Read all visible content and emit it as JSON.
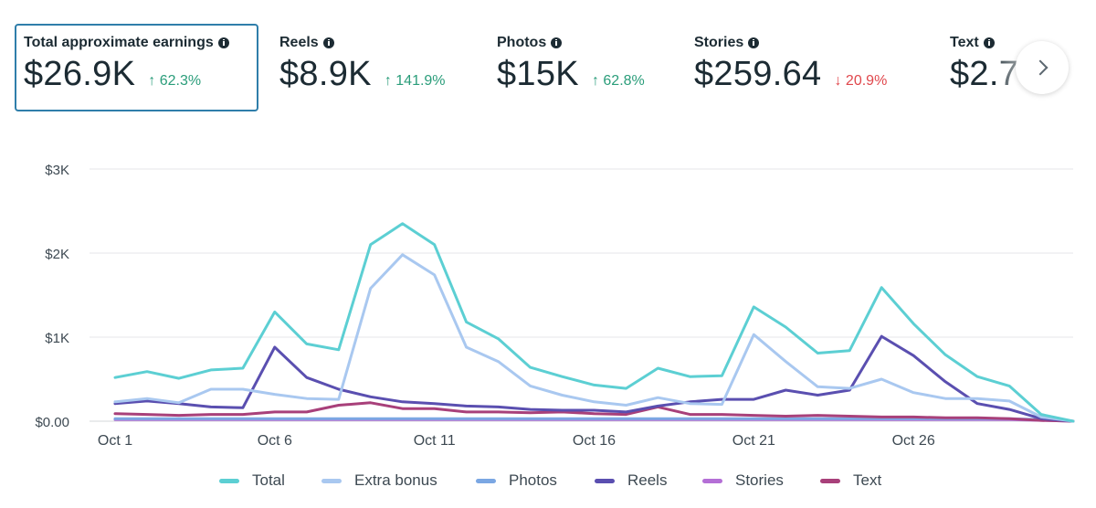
{
  "cards": [
    {
      "label": "Total approximate earnings",
      "value": "$26.9K",
      "change": "62.3%",
      "direction": "up",
      "arrow": "↑",
      "selected": true
    },
    {
      "label": "Reels",
      "value": "$8.9K",
      "change": "141.9%",
      "direction": "up",
      "arrow": "↑"
    },
    {
      "label": "Photos",
      "value": "$15K",
      "change": "62.8%",
      "direction": "up",
      "arrow": "↑"
    },
    {
      "label": "Stories",
      "value": "$259.64",
      "change": "20.9%",
      "direction": "down",
      "arrow": "↓"
    },
    {
      "label": "Text",
      "value": "$2.7",
      "change": "",
      "direction": "down",
      "arrow": "↓"
    }
  ],
  "icons": {
    "info": "info-icon",
    "next": "chevron-right-icon"
  },
  "chart_data": {
    "type": "line",
    "title": "",
    "xlabel": "",
    "ylabel": "",
    "ylim": [
      0,
      3000
    ],
    "grid": true,
    "legend_position": "bottom",
    "y_ticks": [
      0,
      1000,
      2000,
      3000
    ],
    "y_tick_labels": [
      "$0.00",
      "$1K",
      "$2K",
      "$3K"
    ],
    "x_tick_indices": [
      0,
      5,
      10,
      15,
      20,
      25
    ],
    "x_tick_labels": [
      "Oct 1",
      "Oct 6",
      "Oct 11",
      "Oct 16",
      "Oct 21",
      "Oct 26"
    ],
    "x": [
      1,
      2,
      3,
      4,
      5,
      6,
      7,
      8,
      9,
      10,
      11,
      12,
      13,
      14,
      15,
      16,
      17,
      18,
      19,
      20,
      21,
      22,
      23,
      24,
      25,
      26,
      27,
      28,
      29,
      30,
      31
    ],
    "series": [
      {
        "name": "Total",
        "color": "#5ccfd3",
        "values": [
          520,
          590,
          510,
          610,
          630,
          1300,
          920,
          850,
          2100,
          2350,
          2100,
          1180,
          980,
          640,
          530,
          430,
          390,
          630,
          530,
          540,
          1360,
          1120,
          810,
          840,
          1590,
          1160,
          790,
          530,
          420,
          80,
          0
        ]
      },
      {
        "name": "Extra bonus",
        "color": "#a9c8f0",
        "values": [
          230,
          270,
          220,
          380,
          380,
          320,
          270,
          260,
          1580,
          1980,
          1740,
          880,
          710,
          420,
          310,
          230,
          190,
          280,
          210,
          200,
          1030,
          710,
          410,
          390,
          500,
          340,
          270,
          270,
          240,
          50,
          0
        ]
      },
      {
        "name": "Photos",
        "color": "#7ba7e3",
        "values": [
          30,
          30,
          30,
          30,
          30,
          30,
          30,
          30,
          30,
          30,
          30,
          30,
          30,
          30,
          30,
          30,
          30,
          30,
          30,
          30,
          30,
          30,
          30,
          30,
          30,
          30,
          30,
          30,
          30,
          20,
          0
        ]
      },
      {
        "name": "Reels",
        "color": "#5a4fb0",
        "values": [
          210,
          240,
          210,
          170,
          160,
          880,
          520,
          380,
          290,
          230,
          210,
          180,
          170,
          140,
          130,
          130,
          110,
          180,
          230,
          260,
          260,
          370,
          310,
          370,
          1010,
          780,
          470,
          210,
          140,
          30,
          0
        ]
      },
      {
        "name": "Stories",
        "color": "#b46fd6",
        "values": [
          20,
          20,
          20,
          20,
          20,
          20,
          20,
          20,
          20,
          20,
          20,
          20,
          20,
          20,
          20,
          20,
          20,
          20,
          20,
          20,
          20,
          20,
          20,
          20,
          20,
          20,
          20,
          20,
          20,
          10,
          0
        ]
      },
      {
        "name": "Text",
        "color": "#a8407a",
        "values": [
          90,
          80,
          70,
          80,
          80,
          110,
          110,
          190,
          220,
          150,
          150,
          110,
          110,
          100,
          110,
          90,
          80,
          170,
          80,
          80,
          70,
          60,
          70,
          60,
          50,
          50,
          40,
          40,
          30,
          10,
          0
        ]
      }
    ]
  }
}
